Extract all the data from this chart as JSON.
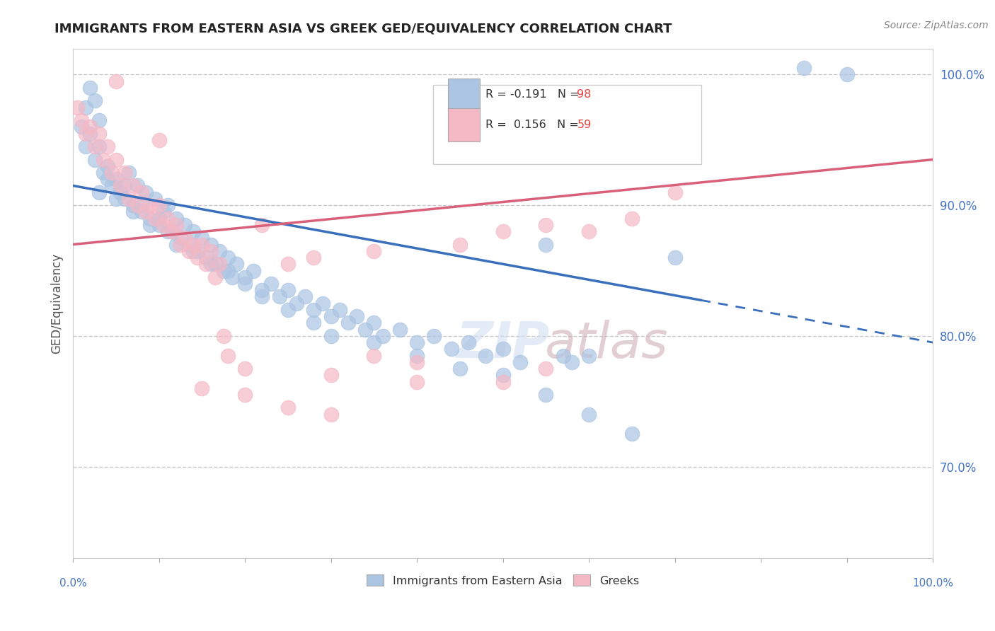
{
  "title": "IMMIGRANTS FROM EASTERN ASIA VS GREEK GED/EQUIVALENCY CORRELATION CHART",
  "source": "Source: ZipAtlas.com",
  "ylabel": "GED/Equivalency",
  "right_yticks": [
    70.0,
    80.0,
    90.0,
    100.0
  ],
  "legend_blue_label": "Immigrants from Eastern Asia",
  "legend_pink_label": "Greeks",
  "r_blue": -0.191,
  "n_blue": 98,
  "r_pink": 0.156,
  "n_pink": 59,
  "blue_color": "#aac4e2",
  "blue_line_color": "#3a6fbc",
  "pink_color": "#f5b8c5",
  "pink_line_color": "#d9607a",
  "background_color": "#ffffff",
  "blue_line_x0": 0,
  "blue_line_y0": 91.5,
  "blue_line_x1": 100,
  "blue_line_y1": 79.5,
  "blue_solid_end_x": 73,
  "pink_line_x0": 0,
  "pink_line_y0": 87.0,
  "pink_line_x1": 100,
  "pink_line_y1": 93.5,
  "xlim": [
    0,
    100
  ],
  "ylim": [
    63,
    102
  ],
  "blue_scatter": [
    [
      1.5,
      97.5
    ],
    [
      2.0,
      99.0
    ],
    [
      2.5,
      98.0
    ],
    [
      3.0,
      96.5
    ],
    [
      1.0,
      96.0
    ],
    [
      1.5,
      94.5
    ],
    [
      2.0,
      95.5
    ],
    [
      2.5,
      93.5
    ],
    [
      3.0,
      94.5
    ],
    [
      3.5,
      92.5
    ],
    [
      4.0,
      93.0
    ],
    [
      4.5,
      91.5
    ],
    [
      5.0,
      92.0
    ],
    [
      5.5,
      91.0
    ],
    [
      6.0,
      90.5
    ],
    [
      6.5,
      92.5
    ],
    [
      7.0,
      90.0
    ],
    [
      7.5,
      91.5
    ],
    [
      8.0,
      89.5
    ],
    [
      8.5,
      91.0
    ],
    [
      9.0,
      89.0
    ],
    [
      9.5,
      90.5
    ],
    [
      10.0,
      88.5
    ],
    [
      10.5,
      89.5
    ],
    [
      11.0,
      90.0
    ],
    [
      11.5,
      88.0
    ],
    [
      12.0,
      89.0
    ],
    [
      12.5,
      87.5
    ],
    [
      13.0,
      88.5
    ],
    [
      13.5,
      87.0
    ],
    [
      14.0,
      88.0
    ],
    [
      14.5,
      86.5
    ],
    [
      15.0,
      87.5
    ],
    [
      15.5,
      86.0
    ],
    [
      16.0,
      87.0
    ],
    [
      16.5,
      85.5
    ],
    [
      17.0,
      86.5
    ],
    [
      17.5,
      85.0
    ],
    [
      18.0,
      86.0
    ],
    [
      18.5,
      84.5
    ],
    [
      19.0,
      85.5
    ],
    [
      20.0,
      84.5
    ],
    [
      21.0,
      85.0
    ],
    [
      22.0,
      83.5
    ],
    [
      23.0,
      84.0
    ],
    [
      24.0,
      83.0
    ],
    [
      25.0,
      83.5
    ],
    [
      26.0,
      82.5
    ],
    [
      27.0,
      83.0
    ],
    [
      28.0,
      82.0
    ],
    [
      29.0,
      82.5
    ],
    [
      30.0,
      81.5
    ],
    [
      31.0,
      82.0
    ],
    [
      32.0,
      81.0
    ],
    [
      33.0,
      81.5
    ],
    [
      34.0,
      80.5
    ],
    [
      35.0,
      81.0
    ],
    [
      36.0,
      80.0
    ],
    [
      38.0,
      80.5
    ],
    [
      40.0,
      79.5
    ],
    [
      42.0,
      80.0
    ],
    [
      44.0,
      79.0
    ],
    [
      46.0,
      79.5
    ],
    [
      48.0,
      78.5
    ],
    [
      50.0,
      79.0
    ],
    [
      52.0,
      78.0
    ],
    [
      55.0,
      87.0
    ],
    [
      57.0,
      78.5
    ],
    [
      58.0,
      78.0
    ],
    [
      60.0,
      78.5
    ],
    [
      3.0,
      91.0
    ],
    [
      4.0,
      92.0
    ],
    [
      5.0,
      90.5
    ],
    [
      6.0,
      91.5
    ],
    [
      7.0,
      89.5
    ],
    [
      8.0,
      90.0
    ],
    [
      9.0,
      88.5
    ],
    [
      10.0,
      89.0
    ],
    [
      11.0,
      88.0
    ],
    [
      12.0,
      87.0
    ],
    [
      14.0,
      86.5
    ],
    [
      16.0,
      85.5
    ],
    [
      18.0,
      85.0
    ],
    [
      20.0,
      84.0
    ],
    [
      22.0,
      83.0
    ],
    [
      25.0,
      82.0
    ],
    [
      28.0,
      81.0
    ],
    [
      30.0,
      80.0
    ],
    [
      35.0,
      79.5
    ],
    [
      40.0,
      78.5
    ],
    [
      45.0,
      77.5
    ],
    [
      50.0,
      77.0
    ],
    [
      55.0,
      75.5
    ],
    [
      60.0,
      74.0
    ],
    [
      65.0,
      72.5
    ],
    [
      70.0,
      86.0
    ],
    [
      85.0,
      100.5
    ],
    [
      90.0,
      100.0
    ]
  ],
  "pink_scatter": [
    [
      0.5,
      97.5
    ],
    [
      1.0,
      96.5
    ],
    [
      1.5,
      95.5
    ],
    [
      2.0,
      96.0
    ],
    [
      2.5,
      94.5
    ],
    [
      3.0,
      95.5
    ],
    [
      3.5,
      93.5
    ],
    [
      4.0,
      94.5
    ],
    [
      4.5,
      92.5
    ],
    [
      5.0,
      93.5
    ],
    [
      5.5,
      91.5
    ],
    [
      6.0,
      92.5
    ],
    [
      6.5,
      90.5
    ],
    [
      7.0,
      91.5
    ],
    [
      7.5,
      90.0
    ],
    [
      8.0,
      91.0
    ],
    [
      8.5,
      89.5
    ],
    [
      9.0,
      90.0
    ],
    [
      9.5,
      89.0
    ],
    [
      10.0,
      90.0
    ],
    [
      10.5,
      88.5
    ],
    [
      11.0,
      89.0
    ],
    [
      11.5,
      88.0
    ],
    [
      12.0,
      88.5
    ],
    [
      12.5,
      87.0
    ],
    [
      13.0,
      87.5
    ],
    [
      13.5,
      86.5
    ],
    [
      14.0,
      87.0
    ],
    [
      14.5,
      86.0
    ],
    [
      15.0,
      87.0
    ],
    [
      15.5,
      85.5
    ],
    [
      16.0,
      86.5
    ],
    [
      16.5,
      84.5
    ],
    [
      17.0,
      85.5
    ],
    [
      17.5,
      80.0
    ],
    [
      18.0,
      78.5
    ],
    [
      20.0,
      77.5
    ],
    [
      22.0,
      88.5
    ],
    [
      25.0,
      85.5
    ],
    [
      28.0,
      86.0
    ],
    [
      30.0,
      77.0
    ],
    [
      35.0,
      86.5
    ],
    [
      40.0,
      78.0
    ],
    [
      45.0,
      87.0
    ],
    [
      50.0,
      88.0
    ],
    [
      55.0,
      88.5
    ],
    [
      60.0,
      88.0
    ],
    [
      65.0,
      89.0
    ],
    [
      70.0,
      91.0
    ],
    [
      5.0,
      99.5
    ],
    [
      10.0,
      95.0
    ],
    [
      15.0,
      76.0
    ],
    [
      20.0,
      75.5
    ],
    [
      25.0,
      74.5
    ],
    [
      30.0,
      74.0
    ],
    [
      35.0,
      78.5
    ],
    [
      40.0,
      76.5
    ],
    [
      50.0,
      76.5
    ],
    [
      55.0,
      77.5
    ]
  ]
}
